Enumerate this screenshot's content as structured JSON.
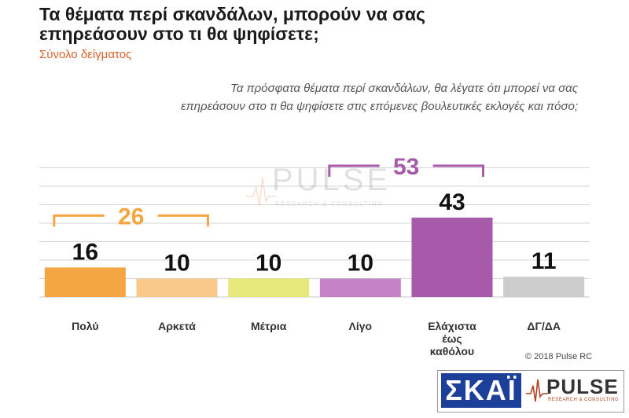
{
  "header": {
    "title_line1": "Τα θέματα περί σκανδάλων, μπορούν να σας",
    "title_line2": "επηρεάσουν στο τι θα ψηφίσετε;",
    "subtitle": "Σύνολο δείγματος",
    "question_line1": "Τα πρόσφατα θέματα περί σκανδάλων, θα λέγατε ότι μπορεί να σας",
    "question_line2": "επηρεάσουν στο τι θα ψηφίσετε στις επόμενες βουλευτικές εκλογές και πόσο;"
  },
  "chart_data": {
    "type": "bar",
    "categories": [
      "Πολύ",
      "Αρκετά",
      "Μέτρια",
      "Λίγο",
      "Ελάχιστα έως καθόλου",
      "ΔΓ/ΔΑ"
    ],
    "category_lines": [
      [
        "Πολύ"
      ],
      [
        "Αρκετά"
      ],
      [
        "Μέτρια"
      ],
      [
        "Λίγο"
      ],
      [
        "Ελάχιστα",
        "έως",
        "καθόλου"
      ],
      [
        "ΔΓ/ΔΑ"
      ]
    ],
    "values": [
      16,
      10,
      10,
      10,
      43,
      11
    ],
    "colors": [
      "#f4a642",
      "#f8c98b",
      "#e7e97d",
      "#c383c4",
      "#a85aaa",
      "#cccccc"
    ],
    "ylim": [
      0,
      70
    ],
    "grid": true,
    "groups": [
      {
        "value": 26,
        "from": 0,
        "to": 1,
        "color": "#f4a642"
      },
      {
        "value": 53,
        "from": 3,
        "to": 4,
        "color": "#a85aaa"
      }
    ]
  },
  "watermark": {
    "word": "PULSE",
    "sub": "RESEARCH & CONSULTING"
  },
  "footer": {
    "copyright": "© 2018 Pulse RC",
    "logo_skai": "ΣΚΑΪ",
    "logo_pulse": "PULSE",
    "logo_pulse_sub": "RESEARCH & CONSULTING"
  }
}
